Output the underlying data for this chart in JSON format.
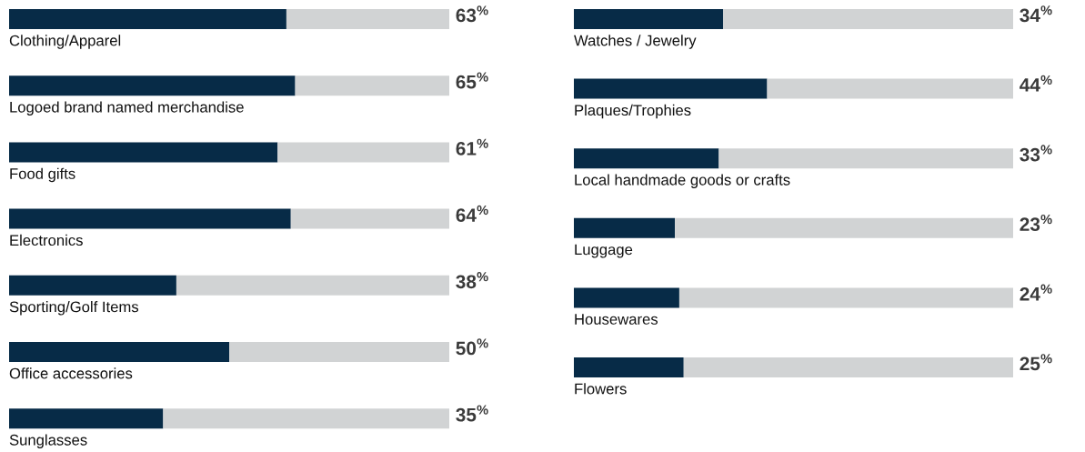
{
  "chart_data": [
    {
      "type": "bar",
      "orientation": "horizontal",
      "stacked": true,
      "categories": [
        "Clothing/Apparel",
        "Logoed brand named merchandise",
        "Food gifts",
        "Electronics",
        "Sporting/Golf Items",
        "Office accessories",
        "Sunglasses"
      ],
      "series": [
        {
          "color": "#072b47",
          "values": [
            63,
            65,
            61,
            64,
            38,
            50,
            35
          ],
          "value_labels": [
            "63$^{%}$",
            "65$^{%}$",
            "61$^{%}$",
            "64$^{%}$",
            "38$^{%}$",
            "50$^{%}$",
            "35$^{%}$"
          ]
        },
        {
          "color": "#d1d3d4",
          "values": [
            37,
            35,
            39,
            36,
            62,
            50,
            65
          ]
        }
      ]
    },
    {
      "type": "bar",
      "orientation": "horizontal",
      "stacked": true,
      "categories": [
        "Watches / Jewelry",
        "Plaques/Trophies",
        "Local handmade goods or crafts",
        "Luggage",
        "Housewares",
        "Flowers"
      ],
      "series": [
        {
          "color": "#072b47",
          "values": [
            34,
            44,
            33,
            23,
            24,
            25
          ],
          "value_labels": [
            "34$^{%}$",
            "44$^{%}$",
            "33$^{%}$",
            "23$^{%}$",
            "24$^{%}$",
            "25$^{%}$"
          ]
        },
        {
          "color": "#d1d3d4",
          "values": [
            66,
            56,
            67,
            77,
            76,
            75
          ]
        }
      ]
    }
  ]
}
